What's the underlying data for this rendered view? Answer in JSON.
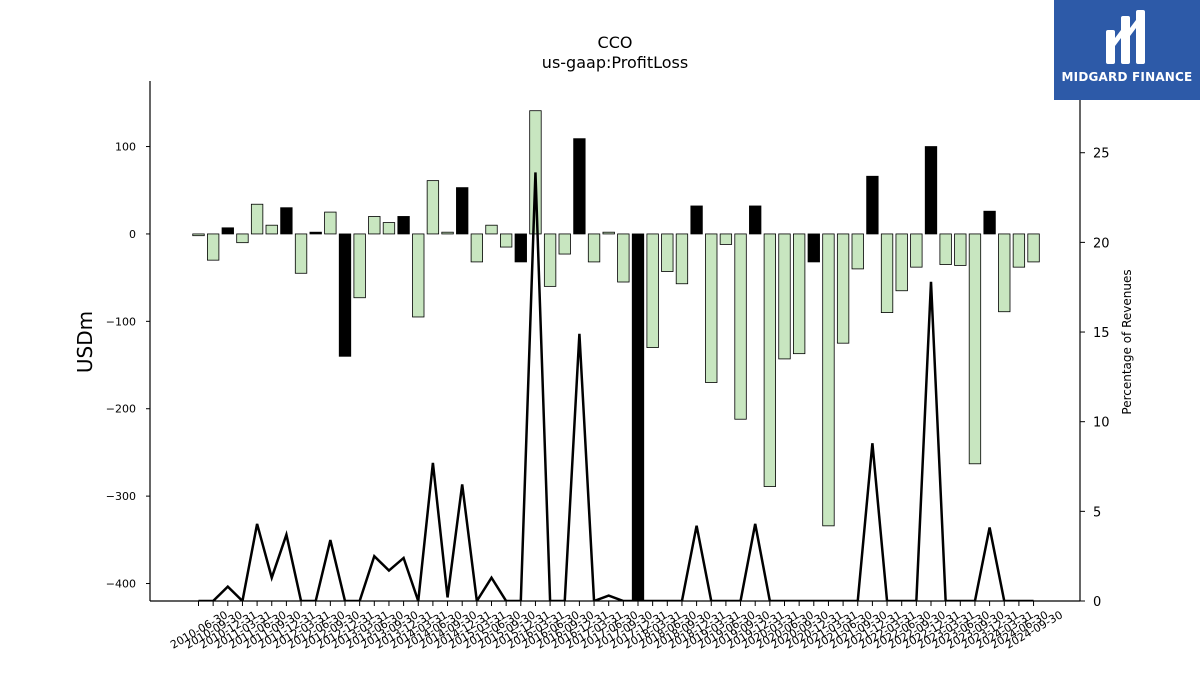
{
  "chart_data": {
    "type": "bar",
    "title": "CCO",
    "subtitle": "us-gaap:ProfitLoss",
    "ylabel": "USDm",
    "y2label": "Percentage of Revenues",
    "ylim": [
      -420,
      175
    ],
    "y2lim": [
      0,
      29
    ],
    "yticks": [
      100,
      0,
      -100,
      -200,
      -300,
      -400
    ],
    "yticklabels": [
      "100",
      "0",
      "−100",
      "−200",
      "−300",
      "−400"
    ],
    "y2ticks": [
      0,
      5,
      10,
      15,
      20,
      25
    ],
    "colors": {
      "light": "#c8e6c0",
      "dark": "#000000",
      "edge": "#000000",
      "line": "#000000"
    },
    "categories": [
      "2010-06-30",
      "2010-09-30",
      "2010-12-31",
      "2011-03-31",
      "2011-06-30",
      "2011-09-30",
      "2011-12-31",
      "2012-03-31",
      "2012-06-30",
      "2012-09-30",
      "2012-12-31",
      "2013-03-31",
      "2013-06-30",
      "2013-09-30",
      "2013-12-31",
      "2014-03-31",
      "2014-06-30",
      "2014-09-30",
      "2014-12-31",
      "2015-03-31",
      "2015-06-30",
      "2015-09-30",
      "2015-12-31",
      "2016-03-31",
      "2016-06-30",
      "2016-09-30",
      "2016-12-31",
      "2017-03-31",
      "2017-06-30",
      "2017-09-30",
      "2017-12-31",
      "2018-03-31",
      "2018-06-30",
      "2018-09-30",
      "2018-12-31",
      "2019-03-31",
      "2019-06-30",
      "2019-09-30",
      "2019-12-31",
      "2020-03-31",
      "2020-06-30",
      "2020-09-30",
      "2020-12-31",
      "2021-03-31",
      "2021-06-30",
      "2021-09-30",
      "2021-12-31",
      "2022-03-31",
      "2022-06-30",
      "2022-09-30",
      "2022-12-31",
      "2023-03-31",
      "2023-06-30",
      "2023-09-30",
      "2023-12-31",
      "2024-03-31",
      "2024-06-30",
      "2024-09-30"
    ],
    "xticklabels": [
      "2010-06-30",
      "2010-09-30",
      "2010-12-31",
      "2011-03-31",
      "2011-06-30",
      "2011-09-30",
      "2011-12-31",
      "2012-03-31",
      "2012-06-30",
      "2012-09-30",
      "2012-12-31",
      "2013-03-31",
      "2013-06-30",
      "2013-09-30",
      "2013-12-31",
      "2014-03-31",
      "2014-06-30",
      "2014-09-30",
      "2014-12-31",
      "2015-03-31",
      "2015-06-30",
      "2015-09-30",
      "2015-12-31",
      "2016-03-31",
      "2016-06-30",
      "2016-09-30",
      "2016-12-31",
      "2017-03-31",
      "2017-06-30",
      "2017-09-30",
      "2017-12-31",
      "2018-03-31",
      "2018-06-30",
      "2018-09-30",
      "2018-12-31",
      "2019-03-31",
      "2019-06-30",
      "2019-09-30",
      "2019-12-31",
      "2020-03-31",
      "2020-06-30",
      "2020-09-30",
      "2020-12-31",
      "2021-03-31",
      "2021-06-30",
      "2021-09-30",
      "2021-12-31",
      "2022-03-31",
      "2022-06-30",
      "2022-09-30",
      "2022-12-31",
      "2023-03-31",
      "2023-06-30",
      "2023-09-30",
      "2023-12-31",
      "2024-03-31",
      "2024-06-30",
      "2024-09-30"
    ],
    "series": [
      {
        "type": "bar",
        "values": [
          -2,
          -30,
          7,
          -10,
          34,
          10,
          30,
          -45,
          2,
          25,
          -140,
          -73,
          20,
          13,
          20,
          -95,
          61,
          2,
          53,
          -32,
          10,
          -15,
          -32,
          141,
          -60,
          -23,
          109,
          -32,
          2,
          -55,
          -420,
          -130,
          -43,
          -57,
          32,
          -170,
          -12,
          -212,
          32,
          -289,
          -143,
          -137,
          -32,
          -334,
          -125,
          -40,
          66,
          -90,
          -65,
          -38,
          100,
          -35,
          -36,
          -263,
          26,
          -89,
          -38,
          -32
        ],
        "dark": [
          false,
          false,
          true,
          false,
          false,
          false,
          true,
          false,
          true,
          false,
          true,
          false,
          false,
          false,
          true,
          false,
          false,
          false,
          true,
          false,
          false,
          false,
          true,
          false,
          false,
          false,
          true,
          false,
          false,
          false,
          true,
          false,
          false,
          false,
          true,
          false,
          false,
          false,
          true,
          false,
          false,
          false,
          true,
          false,
          false,
          false,
          true,
          false,
          false,
          false,
          true,
          false,
          false,
          false,
          true,
          false,
          false,
          false
        ]
      },
      {
        "type": "line",
        "axis": "right",
        "values": [
          0,
          0,
          0.8,
          0,
          4.3,
          1.3,
          3.7,
          0,
          0,
          3.4,
          0,
          0,
          2.5,
          1.7,
          2.4,
          0,
          7.7,
          0.2,
          6.5,
          0,
          1.3,
          0,
          0,
          23.9,
          0,
          0,
          14.9,
          0,
          0.3,
          0,
          0,
          0,
          0,
          0,
          4.2,
          0,
          0,
          0,
          4.3,
          0,
          0,
          0,
          0,
          0,
          0,
          0,
          8.8,
          0,
          0,
          0,
          17.8,
          0,
          0,
          0,
          4.1,
          0,
          0,
          0
        ]
      }
    ]
  },
  "branding": {
    "logo_text": "MIDGARD FINANCE"
  }
}
